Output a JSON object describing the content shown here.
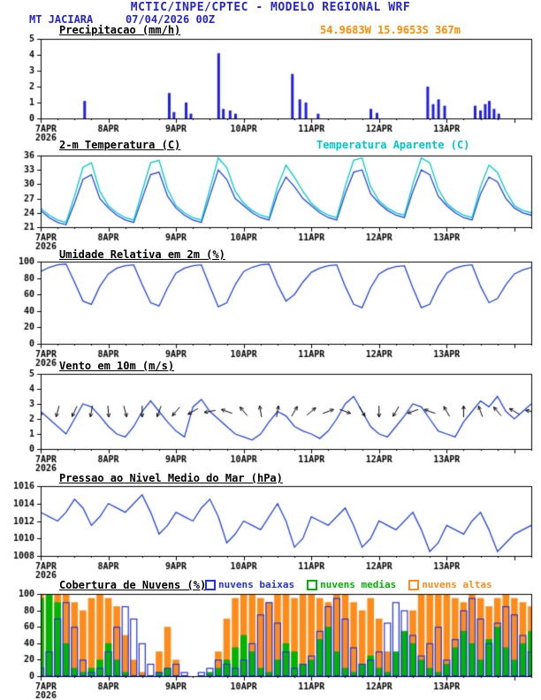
{
  "header": {
    "title": "MCTIC/INPE/CPTEC - MODELO REGIONAL WRF",
    "station": "MT JACIARA",
    "run": "07/04/2026 00Z",
    "location": "54.9683W 15.9653S 367m"
  },
  "colors": {
    "header_blue": "#2626cc",
    "orange": "#ff8c00",
    "cyan": "#00c8c8",
    "line_blue": "#2244dd"
  },
  "x_axis": {
    "tick_labels": [
      "7APR",
      "8APR",
      "9APR",
      "10APR",
      "11APR",
      "12APR",
      "13APR"
    ],
    "year_label": "2026",
    "span_days": 7.25,
    "major_step_days": 1,
    "minor_step_days": 0.25
  },
  "chart_data": [
    {
      "type": "bar",
      "title": "Precipitacao (mm/h)",
      "ylim": [
        0,
        5
      ],
      "yticks": [
        0,
        1,
        2,
        3,
        4,
        5
      ],
      "color": "#2020e0",
      "points": [
        {
          "t": 0.65,
          "v": 1.1
        },
        {
          "t": 1.9,
          "v": 1.6
        },
        {
          "t": 1.97,
          "v": 0.4
        },
        {
          "t": 2.15,
          "v": 1.0
        },
        {
          "t": 2.22,
          "v": 0.3
        },
        {
          "t": 2.63,
          "v": 4.1
        },
        {
          "t": 2.7,
          "v": 0.6
        },
        {
          "t": 2.8,
          "v": 0.5
        },
        {
          "t": 2.88,
          "v": 0.3
        },
        {
          "t": 3.72,
          "v": 2.8
        },
        {
          "t": 3.83,
          "v": 1.2
        },
        {
          "t": 3.92,
          "v": 1.0
        },
        {
          "t": 4.1,
          "v": 0.3
        },
        {
          "t": 4.88,
          "v": 0.6
        },
        {
          "t": 4.97,
          "v": 0.35
        },
        {
          "t": 5.72,
          "v": 2.0
        },
        {
          "t": 5.8,
          "v": 0.9
        },
        {
          "t": 5.88,
          "v": 1.2
        },
        {
          "t": 5.97,
          "v": 0.8
        },
        {
          "t": 6.42,
          "v": 0.8
        },
        {
          "t": 6.5,
          "v": 0.5
        },
        {
          "t": 6.57,
          "v": 0.9
        },
        {
          "t": 6.63,
          "v": 1.1
        },
        {
          "t": 6.7,
          "v": 0.6
        },
        {
          "t": 6.77,
          "v": 0.3
        }
      ]
    },
    {
      "type": "line",
      "title": "2-m Temperatura (C)",
      "legend": "Temperatura Aparente (C)",
      "ylim": [
        21,
        36
      ],
      "yticks": [
        21,
        24,
        27,
        30,
        33,
        36
      ],
      "step_days": 0.125,
      "series": [
        {
          "name": "2-m Temperatura (C)",
          "color": "#2244dd",
          "values": [
            24.5,
            23.0,
            22.0,
            21.5,
            26.0,
            31.0,
            32.0,
            27.0,
            25.0,
            23.5,
            22.5,
            22.0,
            27.0,
            32.0,
            32.5,
            27.5,
            25.0,
            23.5,
            22.5,
            22.0,
            27.5,
            33.0,
            31.0,
            27.0,
            25.5,
            24.0,
            23.0,
            22.5,
            28.0,
            31.5,
            29.5,
            27.0,
            25.5,
            24.0,
            23.0,
            22.5,
            28.0,
            32.5,
            33.0,
            28.0,
            26.0,
            24.5,
            23.5,
            23.0,
            28.5,
            33.0,
            32.0,
            27.5,
            25.5,
            24.0,
            23.0,
            22.5,
            28.0,
            31.5,
            30.5,
            27.0,
            25.0,
            24.0,
            23.5
          ]
        },
        {
          "name": "Temperatura Aparente (C)",
          "color": "#00c8c8",
          "values": [
            25.0,
            23.5,
            22.5,
            22.0,
            27.5,
            33.5,
            34.5,
            28.5,
            25.5,
            24.0,
            23.0,
            22.5,
            28.5,
            34.5,
            35.0,
            29.0,
            25.5,
            24.0,
            23.0,
            22.5,
            29.0,
            35.5,
            33.5,
            28.5,
            26.0,
            24.5,
            23.5,
            23.0,
            29.5,
            34.0,
            31.5,
            28.5,
            26.0,
            24.5,
            23.5,
            23.0,
            29.5,
            35.0,
            35.5,
            29.5,
            26.5,
            25.0,
            24.0,
            23.5,
            30.0,
            35.5,
            34.5,
            29.0,
            26.0,
            24.5,
            23.5,
            23.0,
            29.5,
            34.0,
            32.5,
            28.5,
            25.5,
            24.5,
            24.0
          ]
        }
      ]
    },
    {
      "type": "line",
      "title": "Umidade Relativa em 2m (%)",
      "ylim": [
        0,
        100
      ],
      "yticks": [
        0,
        20,
        40,
        60,
        80,
        100
      ],
      "step_days": 0.125,
      "series": [
        {
          "name": "Umidade Relativa em 2m (%)",
          "color": "#2244dd",
          "values": [
            88,
            93,
            96,
            97,
            75,
            52,
            48,
            70,
            85,
            92,
            95,
            96,
            72,
            50,
            46,
            68,
            86,
            92,
            95,
            96,
            70,
            45,
            50,
            72,
            88,
            93,
            96,
            97,
            72,
            52,
            60,
            75,
            87,
            92,
            95,
            96,
            70,
            48,
            44,
            68,
            85,
            91,
            94,
            95,
            68,
            44,
            48,
            70,
            86,
            92,
            95,
            96,
            70,
            50,
            55,
            72,
            85,
            90,
            93
          ]
        }
      ]
    },
    {
      "type": "wind",
      "title": "Vento em 10m (m/s)",
      "ylim": [
        0,
        5
      ],
      "yticks": [
        0,
        1,
        2,
        3,
        4,
        5
      ],
      "step_days": 0.125,
      "series": [
        {
          "name": "Vento em 10m (m/s)",
          "color": "#2244dd",
          "values": [
            2.5,
            2.0,
            1.5,
            1.0,
            2.0,
            3.0,
            2.8,
            2.2,
            1.5,
            1.0,
            0.8,
            1.5,
            2.5,
            3.2,
            2.5,
            1.8,
            1.2,
            0.8,
            2.8,
            3.3,
            2.5,
            2.0,
            1.5,
            1.0,
            0.8,
            0.6,
            1.0,
            1.8,
            2.5,
            2.2,
            1.5,
            1.2,
            1.0,
            0.7,
            1.2,
            2.0,
            3.0,
            3.5,
            2.5,
            1.5,
            1.0,
            0.8,
            1.5,
            2.2,
            3.0,
            2.8,
            2.0,
            1.2,
            1.0,
            0.8,
            1.8,
            2.5,
            3.2,
            2.8,
            3.5,
            2.5,
            2.0,
            2.5,
            3.0
          ]
        }
      ],
      "barbs": {
        "level": 2.5,
        "step_days": 0.25,
        "dirs_deg": [
          95,
          105,
          115,
          100,
          85,
          75,
          90,
          110,
          130,
          150,
          170,
          200,
          230,
          260,
          280,
          300,
          320,
          340,
          20,
          60,
          90,
          120,
          160,
          200,
          240,
          270,
          250,
          230,
          210,
          190
        ]
      }
    },
    {
      "type": "line",
      "title": "Pressao ao Nivel Medio do Mar (hPa)",
      "ylim": [
        1008,
        1016
      ],
      "yticks": [
        1008,
        1010,
        1012,
        1014,
        1016
      ],
      "step_days": 0.125,
      "series": [
        {
          "name": "Pressao ao Nivel Medio do Mar (hPa)",
          "color": "#2244dd",
          "values": [
            1013.0,
            1012.5,
            1012.0,
            1013.0,
            1014.5,
            1013.5,
            1011.5,
            1012.5,
            1014.0,
            1013.5,
            1013.0,
            1014.0,
            1015.0,
            1013.0,
            1010.5,
            1011.5,
            1013.0,
            1012.5,
            1012.0,
            1013.5,
            1014.5,
            1012.5,
            1009.5,
            1010.5,
            1012.0,
            1011.5,
            1011.0,
            1012.5,
            1014.0,
            1012.0,
            1009.0,
            1010.0,
            1012.5,
            1012.0,
            1011.5,
            1012.5,
            1013.5,
            1011.5,
            1009.0,
            1010.0,
            1012.0,
            1011.5,
            1011.0,
            1012.0,
            1013.0,
            1011.0,
            1008.5,
            1009.5,
            1011.5,
            1011.0,
            1010.5,
            1012.0,
            1013.0,
            1011.0,
            1008.5,
            1009.5,
            1010.5,
            1011.0,
            1011.5
          ]
        }
      ]
    },
    {
      "type": "cloud-bars",
      "title": "Cobertura de Nuvens (%)",
      "ylim": [
        0,
        100
      ],
      "yticks": [
        0,
        20,
        40,
        60,
        80,
        100
      ],
      "step_days": 0.125,
      "series": [
        {
          "name": "nuvens baixas",
          "style": "outline",
          "color": "#2233dd",
          "values": [
            10,
            30,
            70,
            90,
            60,
            20,
            5,
            10,
            30,
            60,
            85,
            70,
            40,
            15,
            5,
            10,
            15,
            5,
            0,
            5,
            10,
            20,
            15,
            10,
            20,
            40,
            75,
            90,
            65,
            30,
            10,
            15,
            25,
            55,
            85,
            95,
            70,
            35,
            15,
            20,
            30,
            65,
            90,
            80,
            50,
            25,
            40,
            60,
            20,
            45,
            80,
            95,
            70,
            40,
            65,
            85,
            75,
            50,
            30
          ]
        },
        {
          "name": "nuvens medias",
          "style": "fill",
          "color": "#00b400",
          "values": [
            95,
            100,
            90,
            40,
            10,
            5,
            10,
            20,
            40,
            20,
            5,
            0,
            0,
            0,
            5,
            10,
            0,
            0,
            0,
            0,
            5,
            10,
            20,
            35,
            50,
            30,
            10,
            5,
            20,
            40,
            30,
            15,
            20,
            45,
            60,
            30,
            10,
            5,
            15,
            25,
            10,
            5,
            30,
            55,
            40,
            20,
            10,
            5,
            15,
            35,
            55,
            40,
            20,
            45,
            60,
            35,
            20,
            40,
            55
          ]
        },
        {
          "name": "nuvens altas",
          "style": "fill",
          "color": "#ff8c1a",
          "values": [
            100,
            100,
            100,
            100,
            90,
            80,
            95,
            100,
            95,
            85,
            50,
            20,
            5,
            0,
            30,
            60,
            20,
            0,
            0,
            0,
            0,
            30,
            70,
            95,
            100,
            100,
            95,
            90,
            100,
            100,
            95,
            100,
            100,
            95,
            90,
            100,
            100,
            90,
            80,
            95,
            70,
            30,
            10,
            40,
            80,
            100,
            100,
            100,
            100,
            95,
            90,
            100,
            95,
            85,
            95,
            100,
            95,
            90,
            85
          ]
        }
      ]
    }
  ]
}
